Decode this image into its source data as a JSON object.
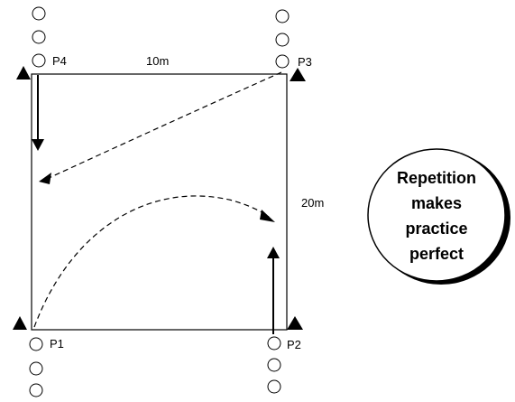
{
  "field": {
    "width_label": "10m",
    "length_label": "20m"
  },
  "points": {
    "p1": "P1",
    "p2": "P2",
    "p3": "P3",
    "p4": "P4"
  },
  "bubble": {
    "line1": "Repetition",
    "line2": "makes",
    "line3": "practice",
    "line4": "perfect"
  },
  "colors": {
    "ink": "#000000",
    "background": "#ffffff"
  },
  "icons": {
    "player": "circle-icon",
    "cone": "triangle-cone-icon"
  }
}
